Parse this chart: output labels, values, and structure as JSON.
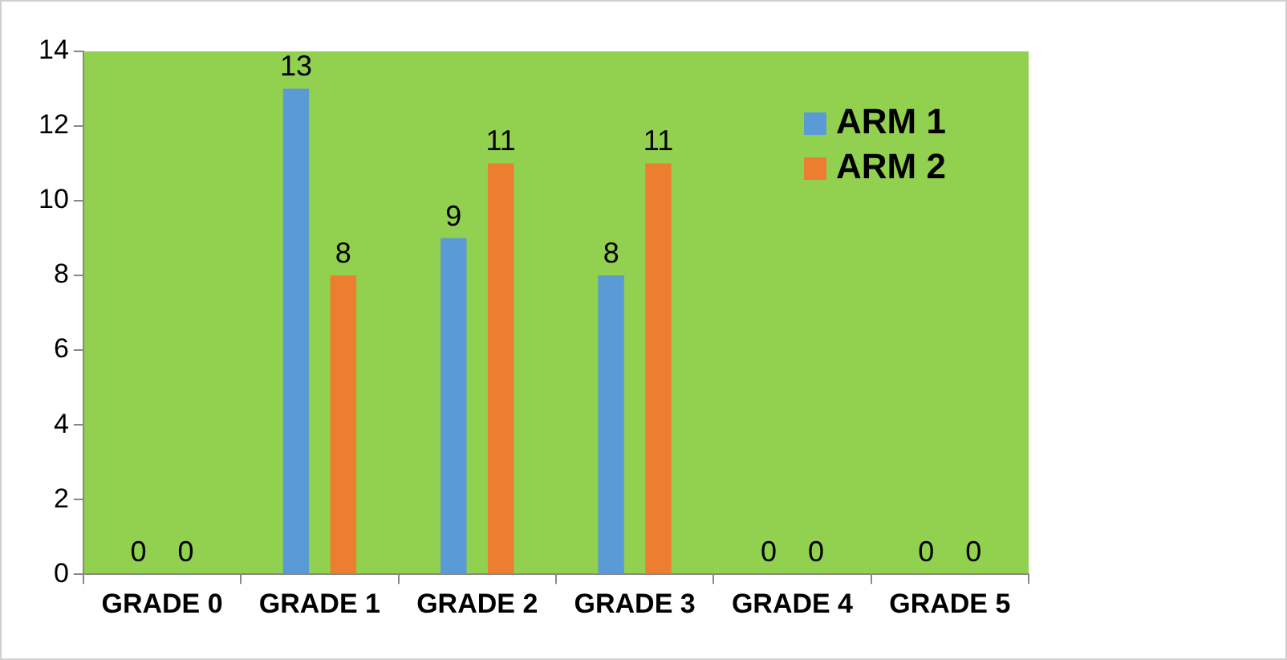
{
  "chart_data": {
    "type": "bar",
    "categories": [
      "GRADE 0",
      "GRADE 1",
      "GRADE 2",
      "GRADE 3",
      "GRADE 4",
      "GRADE 5"
    ],
    "series": [
      {
        "name": "ARM 1",
        "color": "#5b9bd5",
        "values": [
          0,
          13,
          9,
          8,
          0,
          0
        ]
      },
      {
        "name": "ARM 2",
        "color": "#ed7d31",
        "values": [
          0,
          8,
          11,
          11,
          0,
          0
        ]
      }
    ],
    "ylim": [
      0,
      14
    ],
    "yticks": [
      0,
      2,
      4,
      6,
      8,
      10,
      12,
      14
    ],
    "grid": false,
    "legend": "top right",
    "data_labels": true
  }
}
